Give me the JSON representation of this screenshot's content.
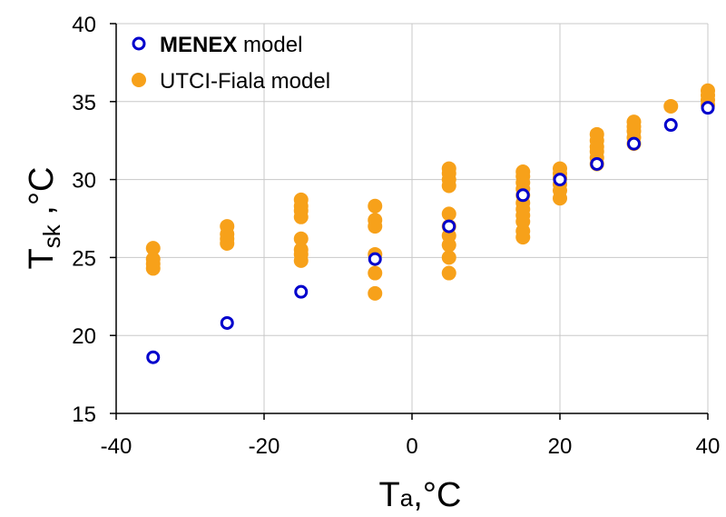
{
  "chart_data": {
    "type": "scatter",
    "x_label": {
      "main": "T",
      "sub": "a",
      "suffix": ",°C"
    },
    "y_label": {
      "main": "T",
      "sub": "sk",
      "suffix": " ,°C"
    },
    "xlim": [
      -40,
      40
    ],
    "ylim": [
      15,
      40
    ],
    "x_ticks": [
      -40,
      -20,
      0,
      20,
      40
    ],
    "y_ticks": [
      15,
      20,
      25,
      30,
      35,
      40
    ],
    "grid": true,
    "legend_position": "top-left",
    "series": [
      {
        "name": "UTCI-Fiala model",
        "legend_bold": "",
        "legend_rest": "UTCI-Fiala model",
        "marker": "filled-circle",
        "color": "#f7a11a",
        "points": [
          [
            -35,
            24.3
          ],
          [
            -35,
            24.6
          ],
          [
            -35,
            24.9
          ],
          [
            -35,
            25.6
          ],
          [
            -25,
            25.9
          ],
          [
            -25,
            26.2
          ],
          [
            -25,
            26.5
          ],
          [
            -25,
            27.0
          ],
          [
            -15,
            24.8
          ],
          [
            -15,
            25.2
          ],
          [
            -15,
            25.5
          ],
          [
            -15,
            26.2
          ],
          [
            -15,
            27.6
          ],
          [
            -15,
            28.0
          ],
          [
            -15,
            28.3
          ],
          [
            -15,
            28.7
          ],
          [
            -5,
            22.7
          ],
          [
            -5,
            24.0
          ],
          [
            -5,
            25.2
          ],
          [
            -5,
            27.0
          ],
          [
            -5,
            27.4
          ],
          [
            -5,
            28.3
          ],
          [
            5,
            24.0
          ],
          [
            5,
            25.0
          ],
          [
            5,
            25.8
          ],
          [
            5,
            26.4
          ],
          [
            5,
            27.0
          ],
          [
            5,
            27.8
          ],
          [
            5,
            29.6
          ],
          [
            5,
            30.0
          ],
          [
            5,
            30.4
          ],
          [
            5,
            30.7
          ],
          [
            15,
            26.3
          ],
          [
            15,
            26.7
          ],
          [
            15,
            27.3
          ],
          [
            15,
            27.7
          ],
          [
            15,
            28.1
          ],
          [
            15,
            28.5
          ],
          [
            15,
            29.0
          ],
          [
            15,
            29.4
          ],
          [
            15,
            29.8
          ],
          [
            15,
            30.2
          ],
          [
            15,
            30.5
          ],
          [
            20,
            28.8
          ],
          [
            20,
            29.3
          ],
          [
            20,
            29.7
          ],
          [
            20,
            30.1
          ],
          [
            20,
            30.4
          ],
          [
            20,
            30.7
          ],
          [
            25,
            31.0
          ],
          [
            25,
            31.4
          ],
          [
            25,
            31.8
          ],
          [
            25,
            32.1
          ],
          [
            25,
            32.5
          ],
          [
            25,
            32.9
          ],
          [
            30,
            32.3
          ],
          [
            30,
            32.7
          ],
          [
            30,
            33.1
          ],
          [
            30,
            33.4
          ],
          [
            30,
            33.7
          ],
          [
            35,
            34.7
          ],
          [
            40,
            34.8
          ],
          [
            40,
            35.1
          ],
          [
            40,
            35.4
          ],
          [
            40,
            35.7
          ]
        ]
      },
      {
        "name": "MENEX model",
        "legend_bold": "MENEX",
        "legend_rest": " model",
        "marker": "open-circle",
        "color": "#0000cc",
        "points": [
          [
            -35,
            18.6
          ],
          [
            -25,
            20.8
          ],
          [
            -15,
            22.8
          ],
          [
            -5,
            24.9
          ],
          [
            5,
            27.0
          ],
          [
            15,
            29.0
          ],
          [
            20,
            30.0
          ],
          [
            25,
            31.0
          ],
          [
            30,
            32.3
          ],
          [
            35,
            33.5
          ],
          [
            40,
            34.6
          ]
        ]
      }
    ]
  }
}
